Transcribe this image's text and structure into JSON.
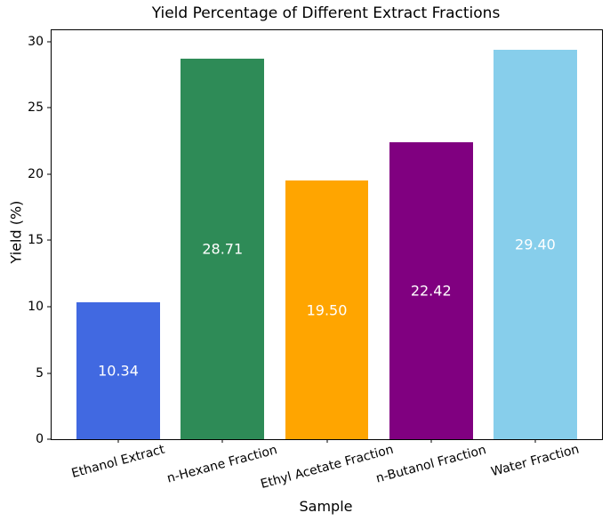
{
  "chart_data": {
    "type": "bar",
    "title": "Yield Percentage of Different Extract Fractions",
    "xlabel": "Sample",
    "ylabel": "Yield (%)",
    "categories": [
      "Ethanol Extract",
      "n-Hexane Fraction",
      "Ethyl Acetate Fraction",
      "n-Butanol Fraction",
      "Water Fraction"
    ],
    "values": [
      10.34,
      28.71,
      19.5,
      22.42,
      29.4
    ],
    "value_labels": [
      "10.34",
      "28.71",
      "19.50",
      "22.42",
      "29.40"
    ],
    "bar_colors": [
      "#4169e1",
      "#2e8b57",
      "#ffa500",
      "#800080",
      "#87ceeb"
    ],
    "bar_label_color": "#ffffff",
    "yticks": [
      0,
      5,
      10,
      15,
      20,
      25,
      30
    ],
    "ylim": [
      0,
      30.87
    ],
    "grid": false,
    "legend": false,
    "axis_color": "#000000",
    "background_color": "#ffffff"
  }
}
